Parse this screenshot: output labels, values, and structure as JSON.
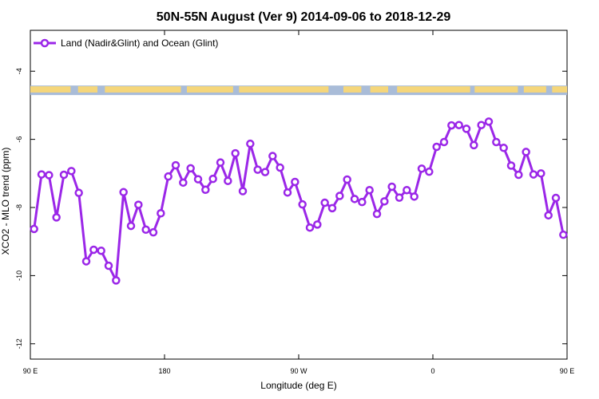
{
  "chart_data": {
    "type": "line",
    "title": "50N-55N August (Ver 9)   2014-09-06 to 2018-12-29",
    "xlabel": "Longitude (deg E)",
    "ylabel": "XCO2 - MLO trend (ppm)",
    "xlim": [
      90,
      450
    ],
    "ylim": [
      -12.45,
      -2.8
    ],
    "x_ticks": [
      90,
      180,
      270,
      360,
      450,
      540
    ],
    "x_tick_labels": [
      "90 E",
      "180",
      "90 W",
      "0",
      "90 E",
      "180"
    ],
    "y_ticks": [
      -12,
      -10,
      -8,
      -6,
      -4
    ],
    "y_tick_labels": [
      "-12",
      "-10",
      "-8",
      "-6",
      "-4"
    ],
    "legend_position": "top-left",
    "grid": false,
    "series": [
      {
        "name": "Land (Nadir&Glint) and Ocean (Glint)",
        "color": "#9b27e8",
        "x": [
          92.5,
          97.5,
          102.5,
          107.5,
          112.5,
          117.5,
          122.5,
          127.5,
          132.5,
          137.5,
          142.5,
          147.5,
          152.5,
          157.5,
          162.5,
          167.5,
          172.5,
          177.5,
          182.5,
          187.5,
          192.5,
          197.5,
          202.5,
          207.5,
          212.5,
          217.5,
          222.5,
          227.5,
          232.5,
          237.5,
          242.5,
          247.5,
          252.5,
          257.5,
          262.5,
          267.5,
          272.5,
          277.5,
          282.5,
          287.5,
          292.5,
          297.5,
          302.5,
          307.5,
          312.5,
          317.5,
          322.5,
          327.5,
          332.5,
          337.5,
          342.5,
          347.5,
          352.5,
          357.5,
          362.5,
          367.5,
          372.5,
          377.5,
          382.5,
          387.5,
          392.5,
          397.5,
          402.5,
          407.5,
          412.5,
          417.5,
          422.5,
          427.5,
          432.5,
          437.5,
          442.5,
          447.5
        ],
        "values": [
          -8.63,
          -7.03,
          -7.05,
          -8.29,
          -7.04,
          -6.93,
          -7.57,
          -9.58,
          -9.24,
          -9.27,
          -9.71,
          -10.14,
          -7.55,
          -8.54,
          -7.92,
          -8.65,
          -8.73,
          -8.17,
          -7.09,
          -6.76,
          -7.27,
          -6.85,
          -7.17,
          -7.48,
          -7.16,
          -6.68,
          -7.22,
          -6.41,
          -7.52,
          -6.13,
          -6.89,
          -6.96,
          -6.49,
          -6.83,
          -7.56,
          -7.25,
          -7.91,
          -8.59,
          -8.5,
          -7.86,
          -8.02,
          -7.66,
          -7.18,
          -7.75,
          -7.84,
          -7.49,
          -8.19,
          -7.82,
          -7.39,
          -7.71,
          -7.49,
          -7.68,
          -6.86,
          -6.95,
          -6.22,
          -6.08,
          -5.59,
          -5.58,
          -5.69,
          -6.17,
          -5.58,
          -5.48,
          -6.08,
          -6.25,
          -6.77,
          -7.04,
          -6.37,
          -7.03,
          -7.0,
          -8.23,
          -7.72,
          -8.8
        ]
      }
    ]
  }
}
